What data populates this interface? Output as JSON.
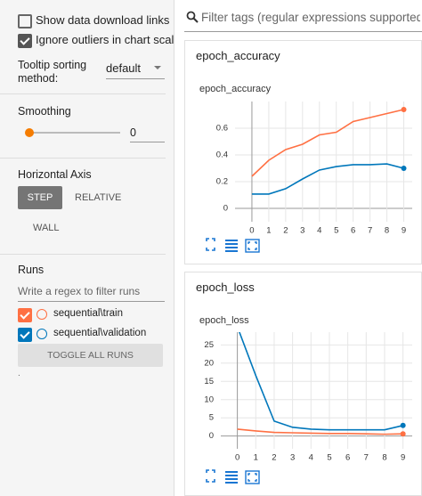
{
  "sidebar": {
    "options": [
      {
        "label": "Show data download links",
        "checked": false
      },
      {
        "label": "Ignore outliers in chart scaling",
        "checked": true
      }
    ],
    "tooltip_label": "Tooltip sorting method:",
    "tooltip_value": "default",
    "smoothing_label": "Smoothing",
    "smoothing_value": 0,
    "axis_label": "Horizontal Axis",
    "axis_buttons": [
      "STEP",
      "RELATIVE",
      "WALL"
    ],
    "runs_label": "Runs",
    "runs_placeholder": "Write a regex to filter runs",
    "runs": [
      {
        "name": "sequential\\train",
        "color": "#ff7043",
        "checked": true
      },
      {
        "name": "sequential\\validation",
        "color": "#0077bb",
        "checked": true
      }
    ],
    "toggle_button": "TOGGLE ALL RUNS",
    "footnote": "."
  },
  "main": {
    "filter_placeholder": "Filter tags (regular expressions supported)",
    "cards": [
      {
        "header": "epoch_accuracy",
        "chart_data": {
          "type": "line",
          "title": "epoch_accuracy",
          "x": [
            0,
            1,
            2,
            3,
            4,
            5,
            6,
            7,
            8,
            9
          ],
          "xlim": [
            -1,
            9.5
          ],
          "xticks": [
            0,
            1,
            2,
            3,
            4,
            5,
            6,
            7,
            8,
            9
          ],
          "ylim": [
            -0.1,
            0.8
          ],
          "yticks": [
            0,
            0.2,
            0.4,
            0.6
          ],
          "grid": true,
          "series": [
            {
              "color": "#ff7043",
              "values": [
                0.24,
                0.36,
                0.44,
                0.48,
                0.55,
                0.57,
                0.65,
                0.68,
                0.71,
                0.74
              ]
            },
            {
              "color": "#0077bb",
              "values": [
                0.107,
                0.107,
                0.147,
                0.22,
                0.287,
                0.313,
                0.327,
                0.327,
                0.333,
                0.3
              ]
            }
          ]
        }
      },
      {
        "header": "epoch_loss",
        "chart_data": {
          "type": "line",
          "title": "epoch_loss",
          "x": [
            0,
            1,
            2,
            3,
            4,
            5,
            6,
            7,
            8,
            9
          ],
          "xlim": [
            -0.9,
            9.5
          ],
          "xticks": [
            0,
            1,
            2,
            3,
            4,
            5,
            6,
            7,
            8,
            9
          ],
          "ylim": [
            -3.5,
            28.5
          ],
          "yticks": [
            0,
            5,
            10,
            15,
            20,
            25
          ],
          "grid": true,
          "series": [
            {
              "color": "#ff7043",
              "values": [
                1.9,
                1.4,
                1.0,
                0.9,
                0.8,
                0.7,
                0.7,
                0.6,
                0.5,
                0.6
              ]
            },
            {
              "color": "#0077bb",
              "values": [
                30,
                16.6,
                4.1,
                2.4,
                1.9,
                1.7,
                1.7,
                1.7,
                1.7,
                2.9
              ]
            }
          ]
        }
      }
    ]
  }
}
